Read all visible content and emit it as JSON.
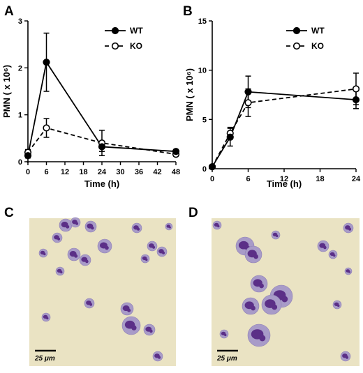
{
  "panel_labels": {
    "a": "A",
    "b": "B",
    "c": "C",
    "d": "D"
  },
  "colors": {
    "line": "#000000",
    "micrograph_bg": "#eae3c3",
    "cell_stain": "#5b2f87",
    "cell_cytoplasm": "#a89bc8"
  },
  "chart_data": [
    {
      "type": "line",
      "panel": "A",
      "xlabel": "Time (h)",
      "ylabel": "PMN ( x 10⁶)",
      "xlim": [
        0,
        48
      ],
      "ylim": [
        0,
        3
      ],
      "xticks": [
        0,
        6,
        12,
        18,
        24,
        30,
        36,
        42,
        48
      ],
      "yticks": [
        0,
        1,
        2,
        3
      ],
      "legend_position": "top-right",
      "series": [
        {
          "name": "WT",
          "style": "solid",
          "marker": "filled-circle",
          "x": [
            0,
            6,
            24,
            48
          ],
          "y": [
            0.13,
            2.12,
            0.32,
            0.22
          ],
          "err": [
            0.05,
            0.62,
            0.1,
            0.04
          ]
        },
        {
          "name": "KO",
          "style": "dashed",
          "marker": "open-circle",
          "x": [
            0,
            6,
            24,
            48
          ],
          "y": [
            0.2,
            0.72,
            0.4,
            0.16
          ],
          "err": [
            0.06,
            0.2,
            0.27,
            0.04
          ]
        }
      ]
    },
    {
      "type": "line",
      "panel": "B",
      "xlabel": "Time (h)",
      "ylabel": "PMN ( x 10⁶)",
      "xlim": [
        0,
        24
      ],
      "ylim": [
        0,
        15
      ],
      "xticks": [
        0,
        6,
        12,
        18,
        24
      ],
      "yticks": [
        0,
        5,
        10,
        15
      ],
      "legend_position": "top-right",
      "series": [
        {
          "name": "WT",
          "style": "solid",
          "marker": "filled-circle",
          "x": [
            0,
            3,
            6,
            24
          ],
          "y": [
            0.2,
            3.2,
            7.8,
            7.0
          ],
          "err": [
            0.1,
            0.9,
            1.6,
            0.9
          ]
        },
        {
          "name": "KO",
          "style": "dashed",
          "marker": "open-circle",
          "x": [
            0,
            3,
            6,
            24
          ],
          "y": [
            0.2,
            3.6,
            6.7,
            8.1
          ],
          "err": [
            0.1,
            0.6,
            1.4,
            1.6
          ]
        }
      ]
    }
  ],
  "micrographs": [
    {
      "panel": "C",
      "scale_label": "25 μm"
    },
    {
      "panel": "D",
      "scale_label": "25 μm"
    }
  ]
}
